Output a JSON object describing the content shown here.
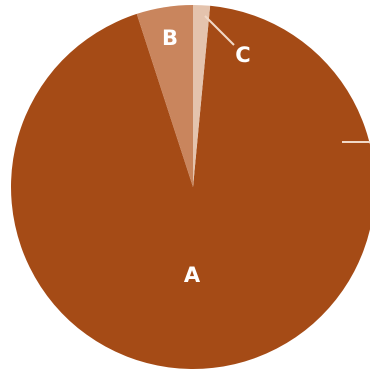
{
  "chart_data": {
    "type": "pie",
    "title": "",
    "slices": [
      {
        "label": "A",
        "value": 93.5,
        "color": "#a54b16"
      },
      {
        "label": "B",
        "value": 5.0,
        "color": "#c9855d"
      },
      {
        "label": "C",
        "value": 1.5,
        "color": "#e4c3ad"
      }
    ],
    "legend": "none",
    "leader_line_color": "#f1d9c7"
  }
}
